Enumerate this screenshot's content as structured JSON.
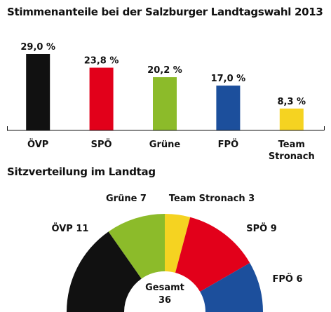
{
  "chart_data": [
    {
      "type": "bar",
      "title": "Stimmenanteile bei der Salzburger Landtagswahl 2013",
      "categories": [
        "ÖVP",
        "SPÖ",
        "Grüne",
        "FPÖ",
        "Team Stronach"
      ],
      "category_lines": [
        [
          "ÖVP"
        ],
        [
          "SPÖ"
        ],
        [
          "Grüne"
        ],
        [
          "FPÖ"
        ],
        [
          "Team",
          "Stronach"
        ]
      ],
      "values": [
        29.0,
        23.8,
        20.2,
        17.0,
        8.3
      ],
      "value_labels": [
        "29,0 %",
        "23,8 %",
        "20,2 %",
        "17,0 %",
        "8,3 %"
      ],
      "colors": [
        "#111111",
        "#e2001a",
        "#8cbb2a",
        "#1c4f9c",
        "#f5d321"
      ],
      "ylim": [
        0,
        29
      ],
      "grid": false
    },
    {
      "type": "pie",
      "subtype": "semicircle",
      "title": "Sitzverteilung im Landtag",
      "categories": [
        "ÖVP",
        "Grüne",
        "Team Stronach",
        "SPÖ",
        "FPÖ"
      ],
      "values": [
        11,
        7,
        3,
        9,
        6
      ],
      "labels": [
        "ÖVP 11",
        "Grüne 7",
        "Team Stronach 3",
        "SPÖ 9",
        "FPÖ 6"
      ],
      "colors": [
        "#111111",
        "#8cbb2a",
        "#f5d321",
        "#e2001a",
        "#1c4f9c"
      ],
      "total_label": "Gesamt",
      "total_value": "36"
    }
  ]
}
